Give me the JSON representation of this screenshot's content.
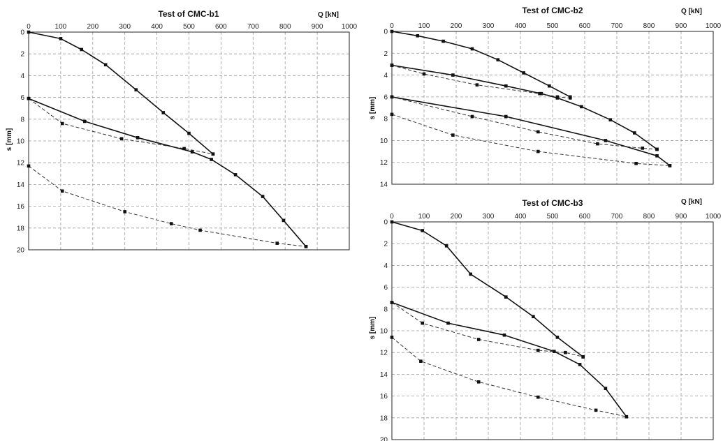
{
  "chart_data": [
    {
      "type": "line",
      "title": "Test of CMC-b1",
      "xlabel": "Q [kN]",
      "ylabel": "s [mm]",
      "xlim": [
        0,
        1000
      ],
      "ylim": [
        0,
        20
      ],
      "y_inverted": true,
      "x_axis_position": "top",
      "grid": true,
      "x_ticks": [
        "0",
        "100",
        "200",
        "300",
        "400",
        "500",
        "600",
        "700",
        "800",
        "900",
        "1000"
      ],
      "y_ticks": [
        "0",
        "2",
        "4",
        "6",
        "8",
        "10",
        "12",
        "14",
        "16",
        "18",
        "20"
      ],
      "series": [
        {
          "style": "solid",
          "points": [
            [
              0,
              0
            ],
            [
              100,
              0.6
            ],
            [
              165,
              1.6
            ],
            [
              240,
              3.0
            ],
            [
              335,
              5.3
            ],
            [
              420,
              7.4
            ],
            [
              500,
              9.3
            ],
            [
              575,
              11.2
            ]
          ]
        },
        {
          "style": "solid",
          "points": [
            [
              0,
              6.1
            ],
            [
              175,
              8.2
            ],
            [
              340,
              9.7
            ],
            [
              510,
              11.0
            ],
            [
              570,
              11.7
            ],
            [
              645,
              13.1
            ],
            [
              730,
              15.1
            ],
            [
              795,
              17.3
            ],
            [
              865,
              19.7
            ]
          ]
        },
        {
          "style": "dashed",
          "points": [
            [
              0,
              6.1
            ],
            [
              105,
              8.4
            ],
            [
              290,
              9.8
            ],
            [
              485,
              10.7
            ],
            [
              575,
              11.2
            ]
          ]
        },
        {
          "style": "dashed",
          "points": [
            [
              0,
              12.3
            ],
            [
              105,
              14.6
            ],
            [
              300,
              16.5
            ],
            [
              445,
              17.6
            ],
            [
              535,
              18.2
            ],
            [
              775,
              19.4
            ],
            [
              865,
              19.7
            ]
          ]
        }
      ]
    },
    {
      "type": "line",
      "title": "Test of CMC-b2",
      "xlabel": "Q [kN]",
      "ylabel": "s [mm]",
      "xlim": [
        0,
        1000
      ],
      "ylim": [
        0,
        14
      ],
      "y_inverted": true,
      "x_axis_position": "top",
      "grid": true,
      "x_ticks": [
        "0",
        "100",
        "200",
        "300",
        "400",
        "500",
        "600",
        "700",
        "800",
        "900",
        "1000"
      ],
      "y_ticks": [
        "0",
        "2",
        "4",
        "6",
        "8",
        "10",
        "12",
        "14"
      ],
      "series": [
        {
          "style": "solid",
          "points": [
            [
              0,
              0
            ],
            [
              80,
              0.4
            ],
            [
              160,
              0.9
            ],
            [
              250,
              1.6
            ],
            [
              330,
              2.6
            ],
            [
              410,
              3.8
            ],
            [
              490,
              5.0
            ],
            [
              555,
              6.0
            ]
          ]
        },
        {
          "style": "solid",
          "points": [
            [
              0,
              3.1
            ],
            [
              190,
              4.0
            ],
            [
              355,
              5.0
            ],
            [
              465,
              5.7
            ],
            [
              515,
              6.1
            ],
            [
              590,
              6.9
            ],
            [
              680,
              8.1
            ],
            [
              755,
              9.3
            ],
            [
              825,
              10.8
            ]
          ]
        },
        {
          "style": "dashed",
          "points": [
            [
              0,
              3.1
            ],
            [
              100,
              3.9
            ],
            [
              265,
              4.9
            ],
            [
              460,
              5.7
            ],
            [
              515,
              6.0
            ],
            [
              555,
              6.1
            ]
          ]
        },
        {
          "style": "solid",
          "points": [
            [
              0,
              6.0
            ],
            [
              355,
              7.8
            ],
            [
              665,
              10.0
            ],
            [
              825,
              11.4
            ],
            [
              865,
              12.3
            ]
          ]
        },
        {
          "style": "dashed",
          "points": [
            [
              0,
              6.0
            ],
            [
              250,
              7.8
            ],
            [
              455,
              9.2
            ],
            [
              640,
              10.3
            ],
            [
              780,
              10.7
            ],
            [
              825,
              10.8
            ]
          ]
        },
        {
          "style": "dashed",
          "points": [
            [
              0,
              7.6
            ],
            [
              190,
              9.5
            ],
            [
              455,
              11.0
            ],
            [
              760,
              12.1
            ],
            [
              865,
              12.3
            ]
          ]
        }
      ]
    },
    {
      "type": "line",
      "title": "Test of CMC-b3",
      "xlabel": "Q [kN]",
      "ylabel": "s [mm]",
      "xlim": [
        0,
        1000
      ],
      "ylim": [
        0,
        20
      ],
      "y_inverted": true,
      "x_axis_position": "top",
      "grid": true,
      "x_ticks": [
        "0",
        "100",
        "200",
        "300",
        "400",
        "500",
        "600",
        "700",
        "800",
        "900",
        "1000"
      ],
      "y_ticks": [
        "0",
        "2",
        "4",
        "6",
        "8",
        "10",
        "12",
        "14",
        "16",
        "18",
        "20"
      ],
      "series": [
        {
          "style": "solid",
          "points": [
            [
              0,
              0
            ],
            [
              95,
              0.8
            ],
            [
              170,
              2.2
            ],
            [
              245,
              4.8
            ],
            [
              355,
              6.9
            ],
            [
              440,
              8.7
            ],
            [
              515,
              10.6
            ],
            [
              595,
              12.4
            ]
          ]
        },
        {
          "style": "solid",
          "points": [
            [
              0,
              7.4
            ],
            [
              175,
              9.3
            ],
            [
              350,
              10.4
            ],
            [
              505,
              11.9
            ],
            [
              585,
              13.1
            ],
            [
              665,
              15.3
            ],
            [
              730,
              17.9
            ]
          ]
        },
        {
          "style": "dashed",
          "points": [
            [
              0,
              7.4
            ],
            [
              95,
              9.3
            ],
            [
              270,
              10.8
            ],
            [
              455,
              11.8
            ],
            [
              540,
              12.0
            ],
            [
              595,
              12.4
            ]
          ]
        },
        {
          "style": "dashed",
          "points": [
            [
              0,
              10.6
            ],
            [
              90,
              12.8
            ],
            [
              270,
              14.7
            ],
            [
              455,
              16.1
            ],
            [
              635,
              17.3
            ],
            [
              730,
              17.9
            ]
          ]
        }
      ]
    }
  ]
}
